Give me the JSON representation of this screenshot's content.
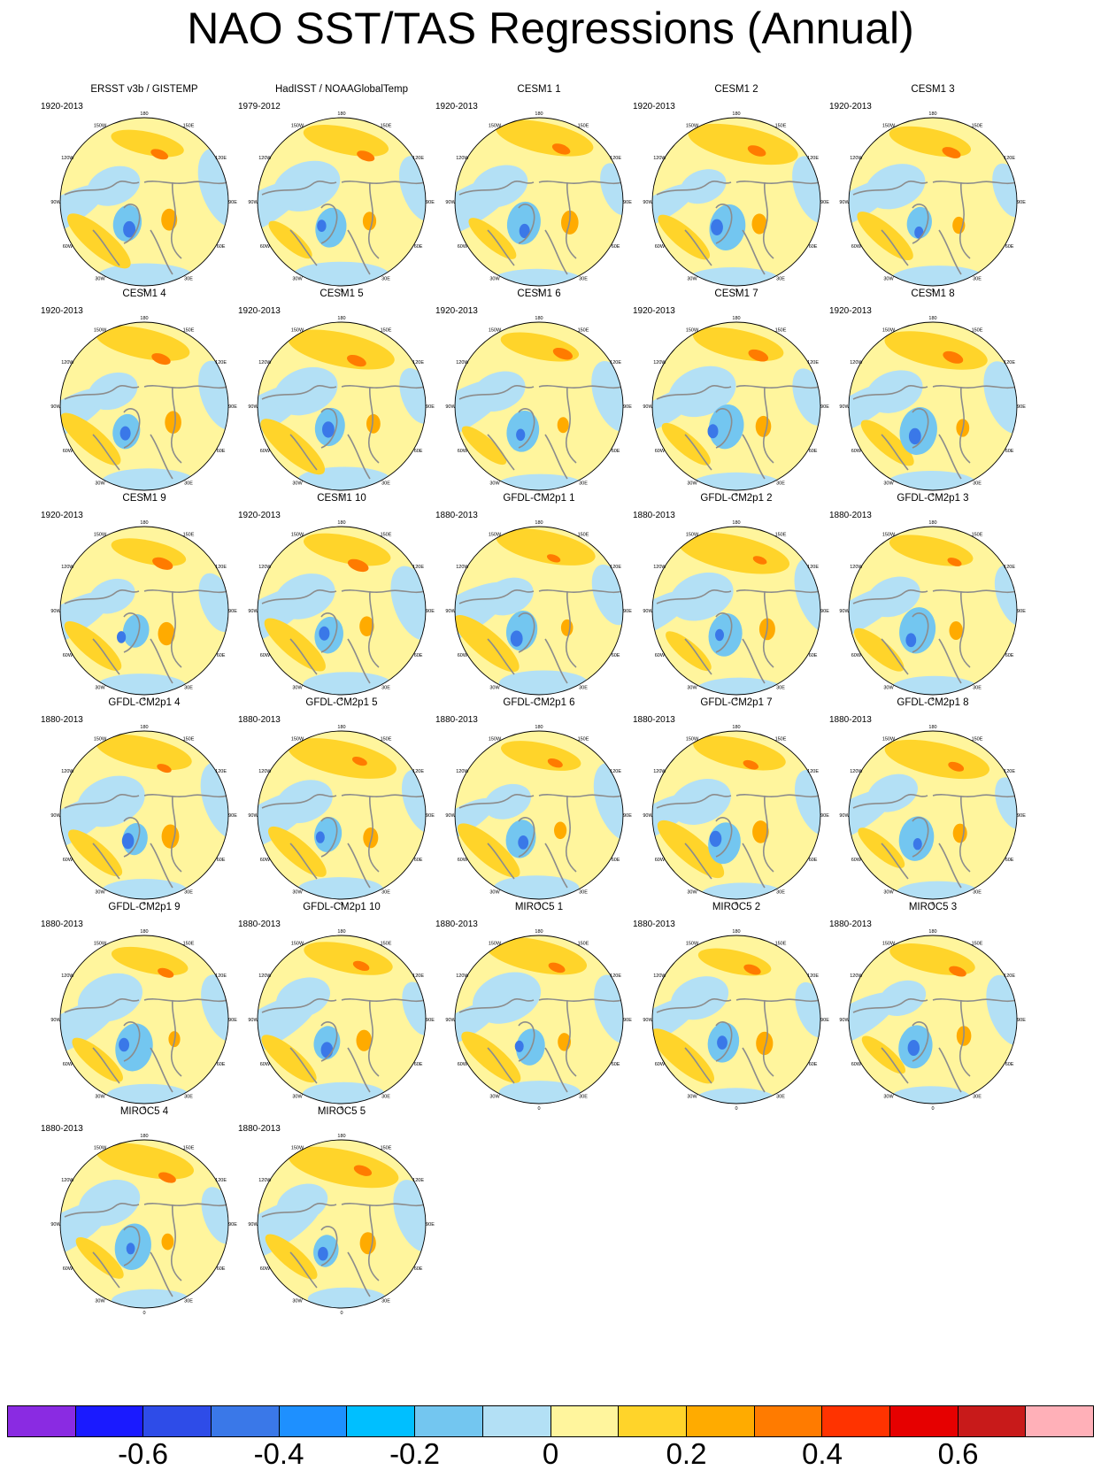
{
  "chart_data": {
    "type": "heatmap",
    "title": "NAO SST/TAS Regressions (Annual)",
    "projection": "north polar stereographic",
    "longitude_labels": [
      "180",
      "150E",
      "120E",
      "90E",
      "60E",
      "30E",
      "0",
      "30W",
      "60W",
      "90W",
      "120W",
      "150W"
    ],
    "colorbar": {
      "colors": [
        "#8a2be2",
        "#1a1aff",
        "#2e4ce8",
        "#3a78e8",
        "#1e90ff",
        "#00bfff",
        "#73c6f0",
        "#b3e0f5",
        "#fff59d",
        "#ffd42a",
        "#ffab00",
        "#ff7b00",
        "#ff3300",
        "#e60000",
        "#c81a1a",
        "#ffb0b8"
      ],
      "tick_labels": [
        "-0.6",
        "-0.4",
        "-0.2",
        "0",
        "0.2",
        "0.4",
        "0.6"
      ],
      "tick_values": [
        -0.6,
        -0.4,
        -0.2,
        0,
        0.2,
        0.4,
        0.6
      ]
    },
    "panels": [
      {
        "title": "ERSST v3b / GISTEMP",
        "period": "1920-2013"
      },
      {
        "title": "HadISST / NOAAGlobalTemp",
        "period": "1979-2012"
      },
      {
        "title": "CESM1 1",
        "period": "1920-2013"
      },
      {
        "title": "CESM1 2",
        "period": "1920-2013"
      },
      {
        "title": "CESM1 3",
        "period": "1920-2013"
      },
      {
        "title": "CESM1 4",
        "period": "1920-2013"
      },
      {
        "title": "CESM1 5",
        "period": "1920-2013"
      },
      {
        "title": "CESM1 6",
        "period": "1920-2013"
      },
      {
        "title": "CESM1 7",
        "period": "1920-2013"
      },
      {
        "title": "CESM1 8",
        "period": "1920-2013"
      },
      {
        "title": "CESM1 9",
        "period": "1920-2013"
      },
      {
        "title": "CESM1 10",
        "period": "1920-2013"
      },
      {
        "title": "GFDL-CM2p1 1",
        "period": "1880-2013"
      },
      {
        "title": "GFDL-CM2p1 2",
        "period": "1880-2013"
      },
      {
        "title": "GFDL-CM2p1 3",
        "period": "1880-2013"
      },
      {
        "title": "GFDL-CM2p1 4",
        "period": "1880-2013"
      },
      {
        "title": "GFDL-CM2p1 5",
        "period": "1880-2013"
      },
      {
        "title": "GFDL-CM2p1 6",
        "period": "1880-2013"
      },
      {
        "title": "GFDL-CM2p1 7",
        "period": "1880-2013"
      },
      {
        "title": "GFDL-CM2p1 8",
        "period": "1880-2013"
      },
      {
        "title": "GFDL-CM2p1 9",
        "period": "1880-2013"
      },
      {
        "title": "GFDL-CM2p1 10",
        "period": "1880-2013"
      },
      {
        "title": "MIROC5 1",
        "period": "1880-2013"
      },
      {
        "title": "MIROC5 2",
        "period": "1880-2013"
      },
      {
        "title": "MIROC5 3",
        "period": "1880-2013"
      },
      {
        "title": "MIROC5 4",
        "period": "1880-2013"
      },
      {
        "title": "MIROC5 5",
        "period": "1880-2013"
      }
    ]
  }
}
